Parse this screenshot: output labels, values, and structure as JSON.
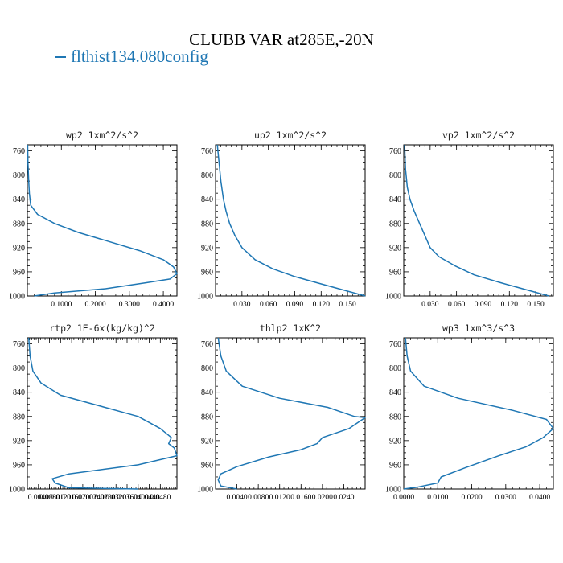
{
  "header": {
    "title": "CLUBB VAR at285E,-20N",
    "legend": "flthist134.080config"
  },
  "colors": {
    "line": "#1f77b4",
    "frame": "#000000"
  },
  "chart_data": [
    {
      "type": "line",
      "title": "wp2  1xm^2/s^2",
      "xlim": [
        0,
        0.44
      ],
      "ylim": [
        1000,
        750
      ],
      "y_inverted": true,
      "yticks": [
        "760",
        "800",
        "840",
        "880",
        "920",
        "960",
        "1000"
      ],
      "xticks": [
        "0.1000",
        "0.2000",
        "0.3000",
        "0.4000"
      ],
      "series": [
        {
          "x": [
            0.001,
            0.002,
            0.004,
            0.006,
            0.01,
            0.03,
            0.08,
            0.15,
            0.24,
            0.33,
            0.4,
            0.43,
            0.44,
            0.42,
            0.35,
            0.23,
            0.08,
            0.02
          ],
          "y": [
            750,
            780,
            810,
            830,
            850,
            865,
            880,
            895,
            910,
            925,
            940,
            952,
            963,
            972,
            978,
            988,
            995,
            1000
          ]
        }
      ]
    },
    {
      "type": "line",
      "title": "up2  1xm^2/s^2",
      "xlim": [
        0,
        0.17
      ],
      "ylim": [
        1000,
        750
      ],
      "y_inverted": true,
      "yticks": [
        "760",
        "800",
        "840",
        "880",
        "920",
        "960",
        "1000"
      ],
      "xticks": [
        "0.030",
        "0.060",
        "0.090",
        "0.120",
        "0.150"
      ],
      "series": [
        {
          "x": [
            0.002,
            0.004,
            0.006,
            0.009,
            0.012,
            0.016,
            0.022,
            0.03,
            0.045,
            0.065,
            0.09,
            0.12,
            0.15,
            0.17
          ],
          "y": [
            750,
            780,
            810,
            840,
            860,
            880,
            900,
            920,
            940,
            955,
            968,
            980,
            992,
            1000
          ]
        }
      ]
    },
    {
      "type": "line",
      "title": "vp2  1xm^2/s^2",
      "xlim": [
        0,
        0.17
      ],
      "ylim": [
        1000,
        750
      ],
      "y_inverted": true,
      "yticks": [
        "760",
        "800",
        "840",
        "880",
        "920",
        "960",
        "1000"
      ],
      "xticks": [
        "0.030",
        "0.060",
        "0.090",
        "0.120",
        "0.150"
      ],
      "series": [
        {
          "x": [
            0.001,
            0.002,
            0.004,
            0.007,
            0.012,
            0.018,
            0.024,
            0.03,
            0.04,
            0.058,
            0.08,
            0.11,
            0.14,
            0.165
          ],
          "y": [
            750,
            790,
            820,
            840,
            860,
            880,
            900,
            920,
            935,
            950,
            965,
            978,
            990,
            1000
          ]
        }
      ]
    },
    {
      "type": "line",
      "title": "rtp2  1E-6x(kg/kg)^2",
      "xlim": [
        0,
        0.054
      ],
      "ylim": [
        1000,
        750
      ],
      "y_inverted": true,
      "yticks": [
        "760",
        "800",
        "840",
        "880",
        "920",
        "960",
        "1000"
      ],
      "xticks": [
        "0.0040",
        "0.0080",
        "0.0120",
        "0.0160",
        "0.0200",
        "0.0240",
        "0.0280",
        "0.0320",
        "0.0360",
        "0.0400",
        "0.0440",
        "0.0480"
      ],
      "series": [
        {
          "x": [
            0.0005,
            0.001,
            0.002,
            0.005,
            0.012,
            0.04,
            0.048,
            0.052,
            0.051,
            0.053,
            0.054,
            0.04,
            0.015,
            0.009,
            0.01,
            0.015,
            0.04
          ],
          "y": [
            750,
            780,
            805,
            825,
            845,
            880,
            900,
            915,
            925,
            932,
            945,
            960,
            975,
            983,
            990,
            998,
            1000
          ]
        }
      ]
    },
    {
      "type": "line",
      "title": "thlp2  1xK^2",
      "xlim": [
        0,
        0.028
      ],
      "ylim": [
        1000,
        750
      ],
      "y_inverted": true,
      "yticks": [
        "760",
        "800",
        "840",
        "880",
        "920",
        "960",
        "1000"
      ],
      "xticks": [
        "0.0040",
        "0.0080",
        "0.0120",
        "0.0160",
        "0.0200",
        "0.0240"
      ],
      "series": [
        {
          "x": [
            0.0005,
            0.001,
            0.002,
            0.005,
            0.012,
            0.021,
            0.026,
            0.028,
            0.025,
            0.02,
            0.019,
            0.016,
            0.01,
            0.004,
            0.001,
            0.0005,
            0.001,
            0.004
          ],
          "y": [
            750,
            780,
            805,
            830,
            850,
            865,
            880,
            882,
            900,
            915,
            925,
            935,
            947,
            963,
            975,
            985,
            995,
            1000
          ]
        }
      ]
    },
    {
      "type": "line",
      "title": "wp3  1xm^3/s^3",
      "xlim": [
        0,
        0.044
      ],
      "ylim": [
        1000,
        750
      ],
      "y_inverted": true,
      "yticks": [
        "760",
        "800",
        "840",
        "880",
        "920",
        "960",
        "1000"
      ],
      "xticks": [
        "0.0000",
        "0.0100",
        "0.0200",
        "0.0300",
        "0.0400"
      ],
      "series": [
        {
          "x": [
            0.0005,
            0.001,
            0.002,
            0.006,
            0.016,
            0.032,
            0.042,
            0.044,
            0.041,
            0.036,
            0.028,
            0.018,
            0.011,
            0.01,
            0.004,
            0.0
          ],
          "y": [
            750,
            780,
            805,
            830,
            850,
            870,
            885,
            900,
            915,
            930,
            945,
            965,
            980,
            990,
            997,
            1000
          ]
        }
      ]
    }
  ]
}
